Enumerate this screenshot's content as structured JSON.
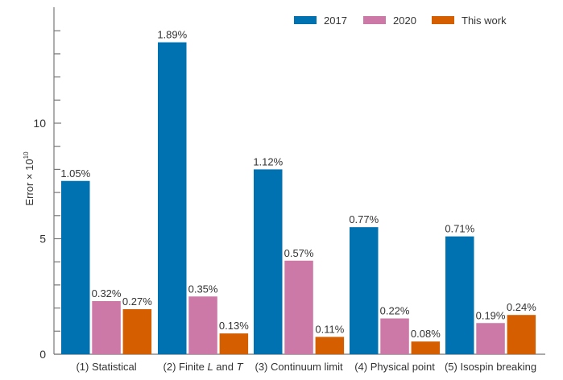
{
  "chart_data": {
    "type": "bar",
    "title": "",
    "xlabel": "",
    "ylabel": "Error × 10",
    "ylabel_superscript": "10",
    "ylim": [
      0,
      15
    ],
    "yticks_major": [
      0,
      5,
      10
    ],
    "yticks_minor_step": 1,
    "grid": false,
    "legend_position": "top-right",
    "categories": [
      {
        "prefix": "(1) Statistical",
        "italic1": "",
        "mid": "",
        "italic2": ""
      },
      {
        "prefix": "(2) Finite ",
        "italic1": "L",
        "mid": " and ",
        "italic2": "T"
      },
      {
        "prefix": "(3) Continuum limit",
        "italic1": "",
        "mid": "",
        "italic2": ""
      },
      {
        "prefix": "(4) Physical point",
        "italic1": "",
        "mid": "",
        "italic2": ""
      },
      {
        "prefix": "(5) Isospin breaking",
        "italic1": "",
        "mid": "",
        "italic2": ""
      }
    ],
    "series": [
      {
        "name": "2017",
        "color": "#0072B2",
        "values": [
          7.5,
          13.5,
          8.0,
          5.5,
          5.1
        ],
        "labels": [
          "1.05%",
          "1.89%",
          "1.12%",
          "0.77%",
          "0.71%"
        ]
      },
      {
        "name": "2020",
        "color": "#CC79A7",
        "values": [
          2.3,
          2.5,
          4.05,
          1.55,
          1.35
        ],
        "labels": [
          "0.32%",
          "0.35%",
          "0.57%",
          "0.22%",
          "0.19%"
        ]
      },
      {
        "name": "This work",
        "color": "#D55E00",
        "values": [
          1.95,
          0.9,
          0.75,
          0.55,
          1.7
        ],
        "labels": [
          "0.27%",
          "0.13%",
          "0.11%",
          "0.08%",
          "0.24%"
        ]
      }
    ]
  }
}
